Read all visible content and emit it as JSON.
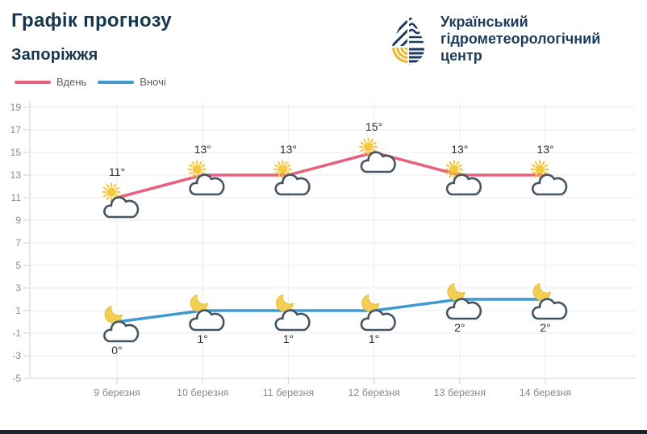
{
  "header": {
    "title": "Графік прогнозу",
    "subtitle": "Запоріжжя",
    "org": {
      "line1": "Український",
      "line2": "гідрометеорологічний",
      "line3": "центр"
    }
  },
  "legend": [
    {
      "label": "Вдень",
      "color": "#e5617e"
    },
    {
      "label": "Вночі",
      "color": "#3f9ad1"
    }
  ],
  "chart_data": {
    "type": "line",
    "title": "Графік прогнозу — Запоріжжя",
    "categories": [
      "9 березня",
      "10 березня",
      "11 березня",
      "12 березня",
      "13 березня",
      "14 березня"
    ],
    "series": [
      {
        "name": "Вдень",
        "color": "#e5617e",
        "icon": "sun-behind-cloud",
        "values": [
          11,
          13,
          13,
          15,
          13,
          13
        ]
      },
      {
        "name": "Вночі",
        "color": "#3f9ad1",
        "icon": "moon-behind-cloud",
        "values": [
          0,
          1,
          1,
          1,
          2,
          2
        ]
      }
    ],
    "unit": "°",
    "y_ticks": [
      19,
      17,
      15,
      13,
      11,
      9,
      7,
      5,
      3,
      1,
      -1,
      -3,
      -5
    ],
    "ylim": [
      -5,
      19
    ],
    "grid": true,
    "legend_position": "top-left"
  },
  "colors": {
    "title_text": "#16364e",
    "org_text": "#1b3c5c",
    "grid": "#ebebeb",
    "axis": "#cfcfcf",
    "axis_text": "#8a8a8a",
    "temp_text": "#2d2d2d",
    "sun": "#f6c83f",
    "moon": "#f2cf52",
    "cloud_outline": "#465564",
    "cloud_fill": "#ffffff",
    "logo_navy": "#1d3a5f",
    "logo_yellow": "#f0b42a",
    "bottom_bar": "#1d232c"
  }
}
